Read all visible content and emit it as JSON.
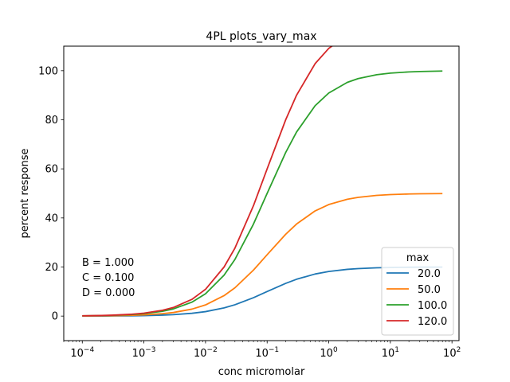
{
  "chart_data": {
    "type": "line",
    "title": "4PL plots_vary_max",
    "xlabel": "conc micromolar",
    "ylabel": "percent response",
    "xscale": "log",
    "xlim": [
      5e-05,
      130
    ],
    "ylim": [
      -10,
      110
    ],
    "grid": false,
    "x_ticks": [
      {
        "base": "10",
        "exp": "−4",
        "value": 0.0001
      },
      {
        "base": "10",
        "exp": "−3",
        "value": 0.001
      },
      {
        "base": "10",
        "exp": "−2",
        "value": 0.01
      },
      {
        "base": "10",
        "exp": "−1",
        "value": 0.1
      },
      {
        "base": "10",
        "exp": "0",
        "value": 1
      },
      {
        "base": "10",
        "exp": "1",
        "value": 10
      },
      {
        "base": "10",
        "exp": "2",
        "value": 100
      }
    ],
    "y_ticks": [
      {
        "label": "0",
        "value": 0
      },
      {
        "label": "20",
        "value": 20
      },
      {
        "label": "40",
        "value": 40
      },
      {
        "label": "60",
        "value": 60
      },
      {
        "label": "80",
        "value": 80
      },
      {
        "label": "100",
        "value": 100
      }
    ],
    "annotations": [
      "B = 1.000",
      "C = 0.100",
      "D = 0.000"
    ],
    "legend": {
      "title": "max",
      "placement": "lower right"
    },
    "model": {
      "B": 1.0,
      "C": 0.1,
      "D": 0.0
    },
    "x": [
      0.0001,
      0.0002,
      0.0003,
      0.0006,
      0.001,
      0.002,
      0.003,
      0.006,
      0.01,
      0.02,
      0.03,
      0.06,
      0.1,
      0.2,
      0.3,
      0.6,
      1,
      2,
      3,
      6,
      10,
      20,
      30,
      70
    ],
    "series": [
      {
        "name": "20.0",
        "color": "#1f77b4",
        "max": 20.0
      },
      {
        "name": "50.0",
        "color": "#ff7f0e",
        "max": 50.0
      },
      {
        "name": "100.0",
        "color": "#2ca02c",
        "max": 100.0
      },
      {
        "name": "120.0",
        "color": "#d62728",
        "max": 120.0
      }
    ]
  }
}
